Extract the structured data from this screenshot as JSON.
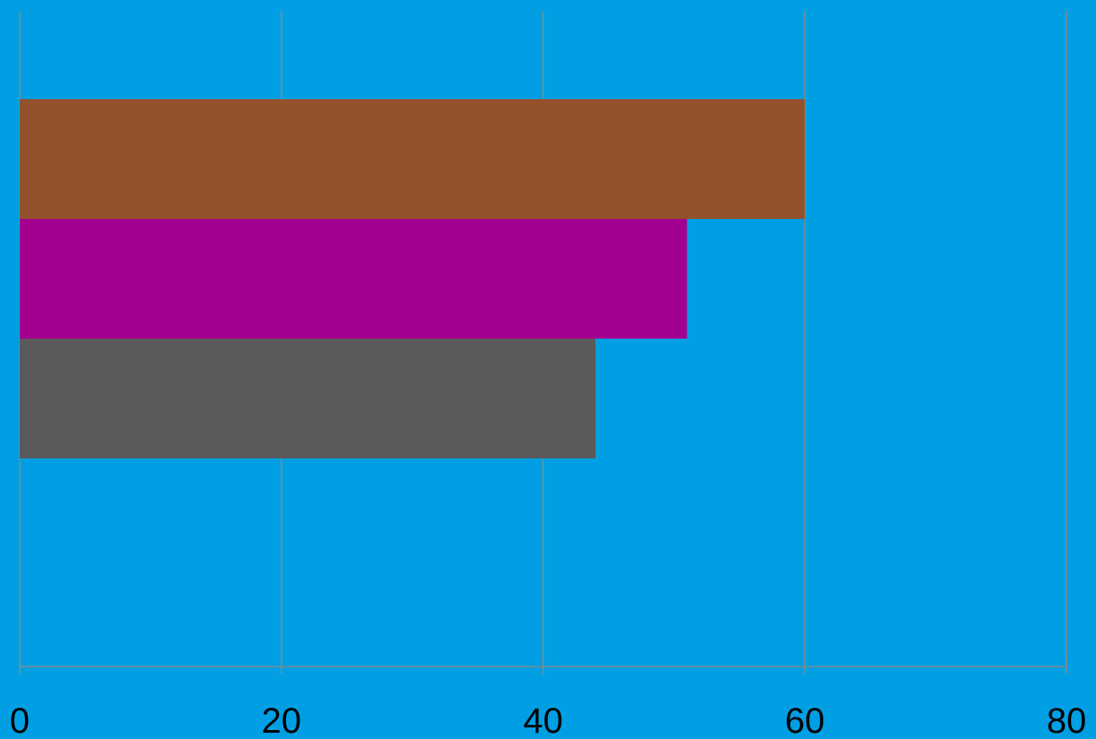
{
  "chart_data": {
    "type": "bar",
    "orientation": "horizontal",
    "title": "",
    "xlabel": "",
    "ylabel": "",
    "xlim": [
      0,
      80
    ],
    "xticks": [
      "0",
      "20",
      "40",
      "60",
      "80"
    ],
    "grid": true,
    "legend": "none",
    "background_color": "#009FE3",
    "gridline_color": "#7F8C8D",
    "bars": [
      {
        "value": 60,
        "color": "#93512C"
      },
      {
        "value": 51,
        "color": "#A3008F"
      },
      {
        "value": 44,
        "color": "#5A5A5C"
      }
    ]
  }
}
